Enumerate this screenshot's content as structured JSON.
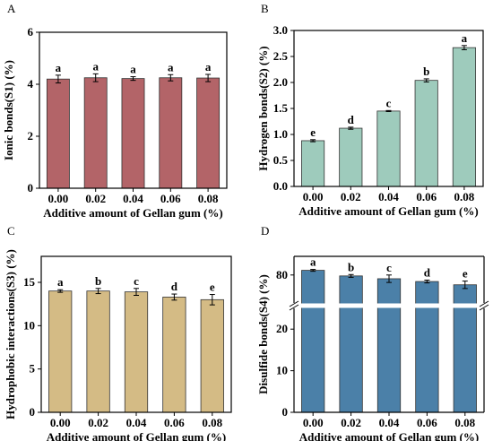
{
  "chart_data": [
    {
      "panel_label": "A",
      "type": "bar",
      "categories": [
        "0.00",
        "0.02",
        "0.04",
        "0.06",
        "0.08"
      ],
      "values": [
        4.2,
        4.25,
        4.22,
        4.25,
        4.24
      ],
      "errors": [
        0.15,
        0.15,
        0.07,
        0.12,
        0.14
      ],
      "significance": [
        "a",
        "a",
        "a",
        "a",
        "a"
      ],
      "xlabel": "Additive amount of Gellan gum (%)",
      "ylabel": "Ionic bonds(S1) (%)",
      "ylim": [
        0,
        6
      ],
      "yticks": [
        "0",
        "2",
        "4",
        "6"
      ],
      "bar_color": "#b36468"
    },
    {
      "panel_label": "B",
      "type": "bar",
      "categories": [
        "0.00",
        "0.02",
        "0.04",
        "0.06",
        "0.08"
      ],
      "values": [
        0.88,
        1.12,
        1.45,
        2.04,
        2.67
      ],
      "errors": [
        0.02,
        0.02,
        0.01,
        0.03,
        0.04
      ],
      "significance": [
        "e",
        "d",
        "c",
        "b",
        "a"
      ],
      "xlabel": "Additive amount of Gellan gum (%)",
      "ylabel": "Hydrogen bonds(S2) (%)",
      "ylim": [
        0,
        3.0
      ],
      "yticks": [
        "0.0",
        "0.5",
        "1.0",
        "1.5",
        "2.0",
        "2.5",
        "3.0"
      ],
      "bar_color": "#9ecbbc"
    },
    {
      "panel_label": "C",
      "type": "bar",
      "categories": [
        "0.00",
        "0.02",
        "0.04",
        "0.06",
        "0.08"
      ],
      "values": [
        14.0,
        14.0,
        13.9,
        13.3,
        13.0
      ],
      "errors": [
        0.15,
        0.3,
        0.4,
        0.35,
        0.6
      ],
      "significance": [
        "a",
        "b",
        "c",
        "d",
        "e"
      ],
      "xlabel": "Additive amount of Gellan gum (%)",
      "ylabel": "Hydrophobic interactions(S3) (%)",
      "ylim": [
        0,
        18
      ],
      "yticks": [
        "0",
        "5",
        "10",
        "15"
      ],
      "bar_color": "#d4bb85"
    },
    {
      "panel_label": "D",
      "type": "bar",
      "categories": [
        "0.00",
        "0.02",
        "0.04",
        "0.06",
        "0.08"
      ],
      "values": [
        81.0,
        79.8,
        79.2,
        78.6,
        77.9
      ],
      "errors": [
        0.2,
        0.3,
        0.8,
        0.3,
        0.8
      ],
      "significance": [
        "a",
        "b",
        "c",
        "d",
        "e"
      ],
      "xlabel": "Additive amount of Gellan gum (%)",
      "ylabel": "Disulfide bonds(S4) (%)",
      "broken_axis": {
        "lower": [
          0,
          25
        ],
        "upper": [
          74,
          84
        ]
      },
      "yticks_lower": [
        "0",
        "10",
        "20"
      ],
      "yticks_upper": [
        "80"
      ],
      "bar_color": "#4b80a8"
    }
  ]
}
